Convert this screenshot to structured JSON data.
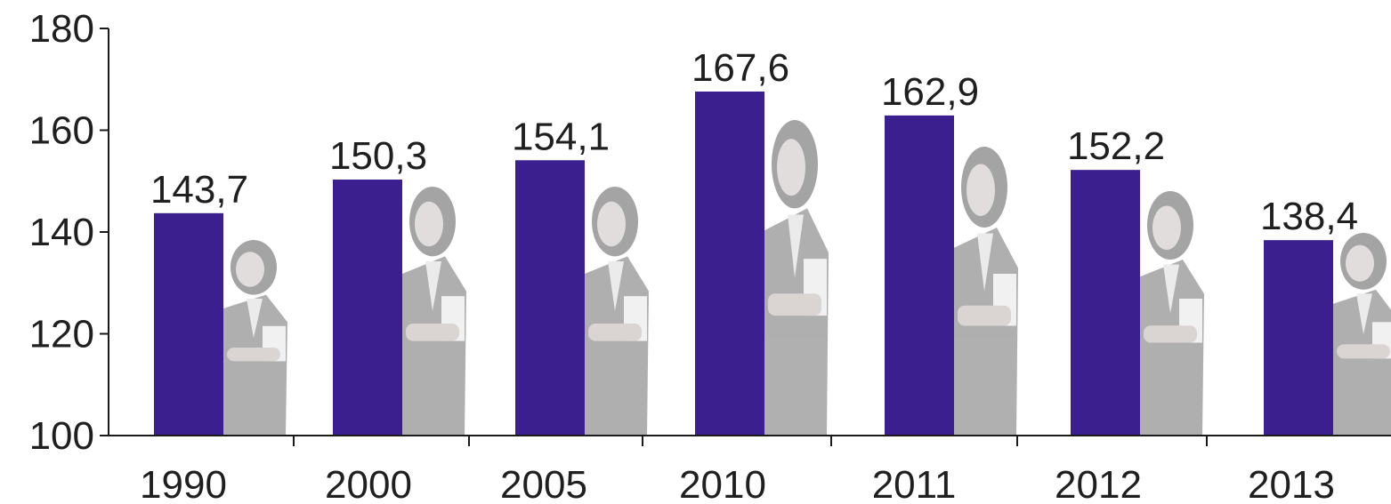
{
  "chart_data": {
    "type": "bar",
    "title": "",
    "xlabel": "",
    "ylabel": "",
    "categories": [
      "1990",
      "2000",
      "2005",
      "2010",
      "2011",
      "2012",
      "2013"
    ],
    "values": [
      143.7,
      150.3,
      154.1,
      167.6,
      162.9,
      152.2,
      138.4
    ],
    "value_labels": [
      "143,7",
      "150,3",
      "154,1",
      "167,6",
      "162,9",
      "152,2",
      "138,4"
    ],
    "ylim": [
      100,
      180
    ],
    "yticks": [
      100,
      120,
      140,
      160,
      180
    ],
    "ytick_labels": [
      "100",
      "120",
      "140",
      "160",
      "180"
    ],
    "grid": false,
    "legend": "none",
    "colors": {
      "bar": "#3c1f8f",
      "axis": "#1a1a1a",
      "text": "#1f1f1f",
      "figure_shade": "#8a8a8a"
    },
    "decorative_figure": "businesswoman-silhouette"
  }
}
